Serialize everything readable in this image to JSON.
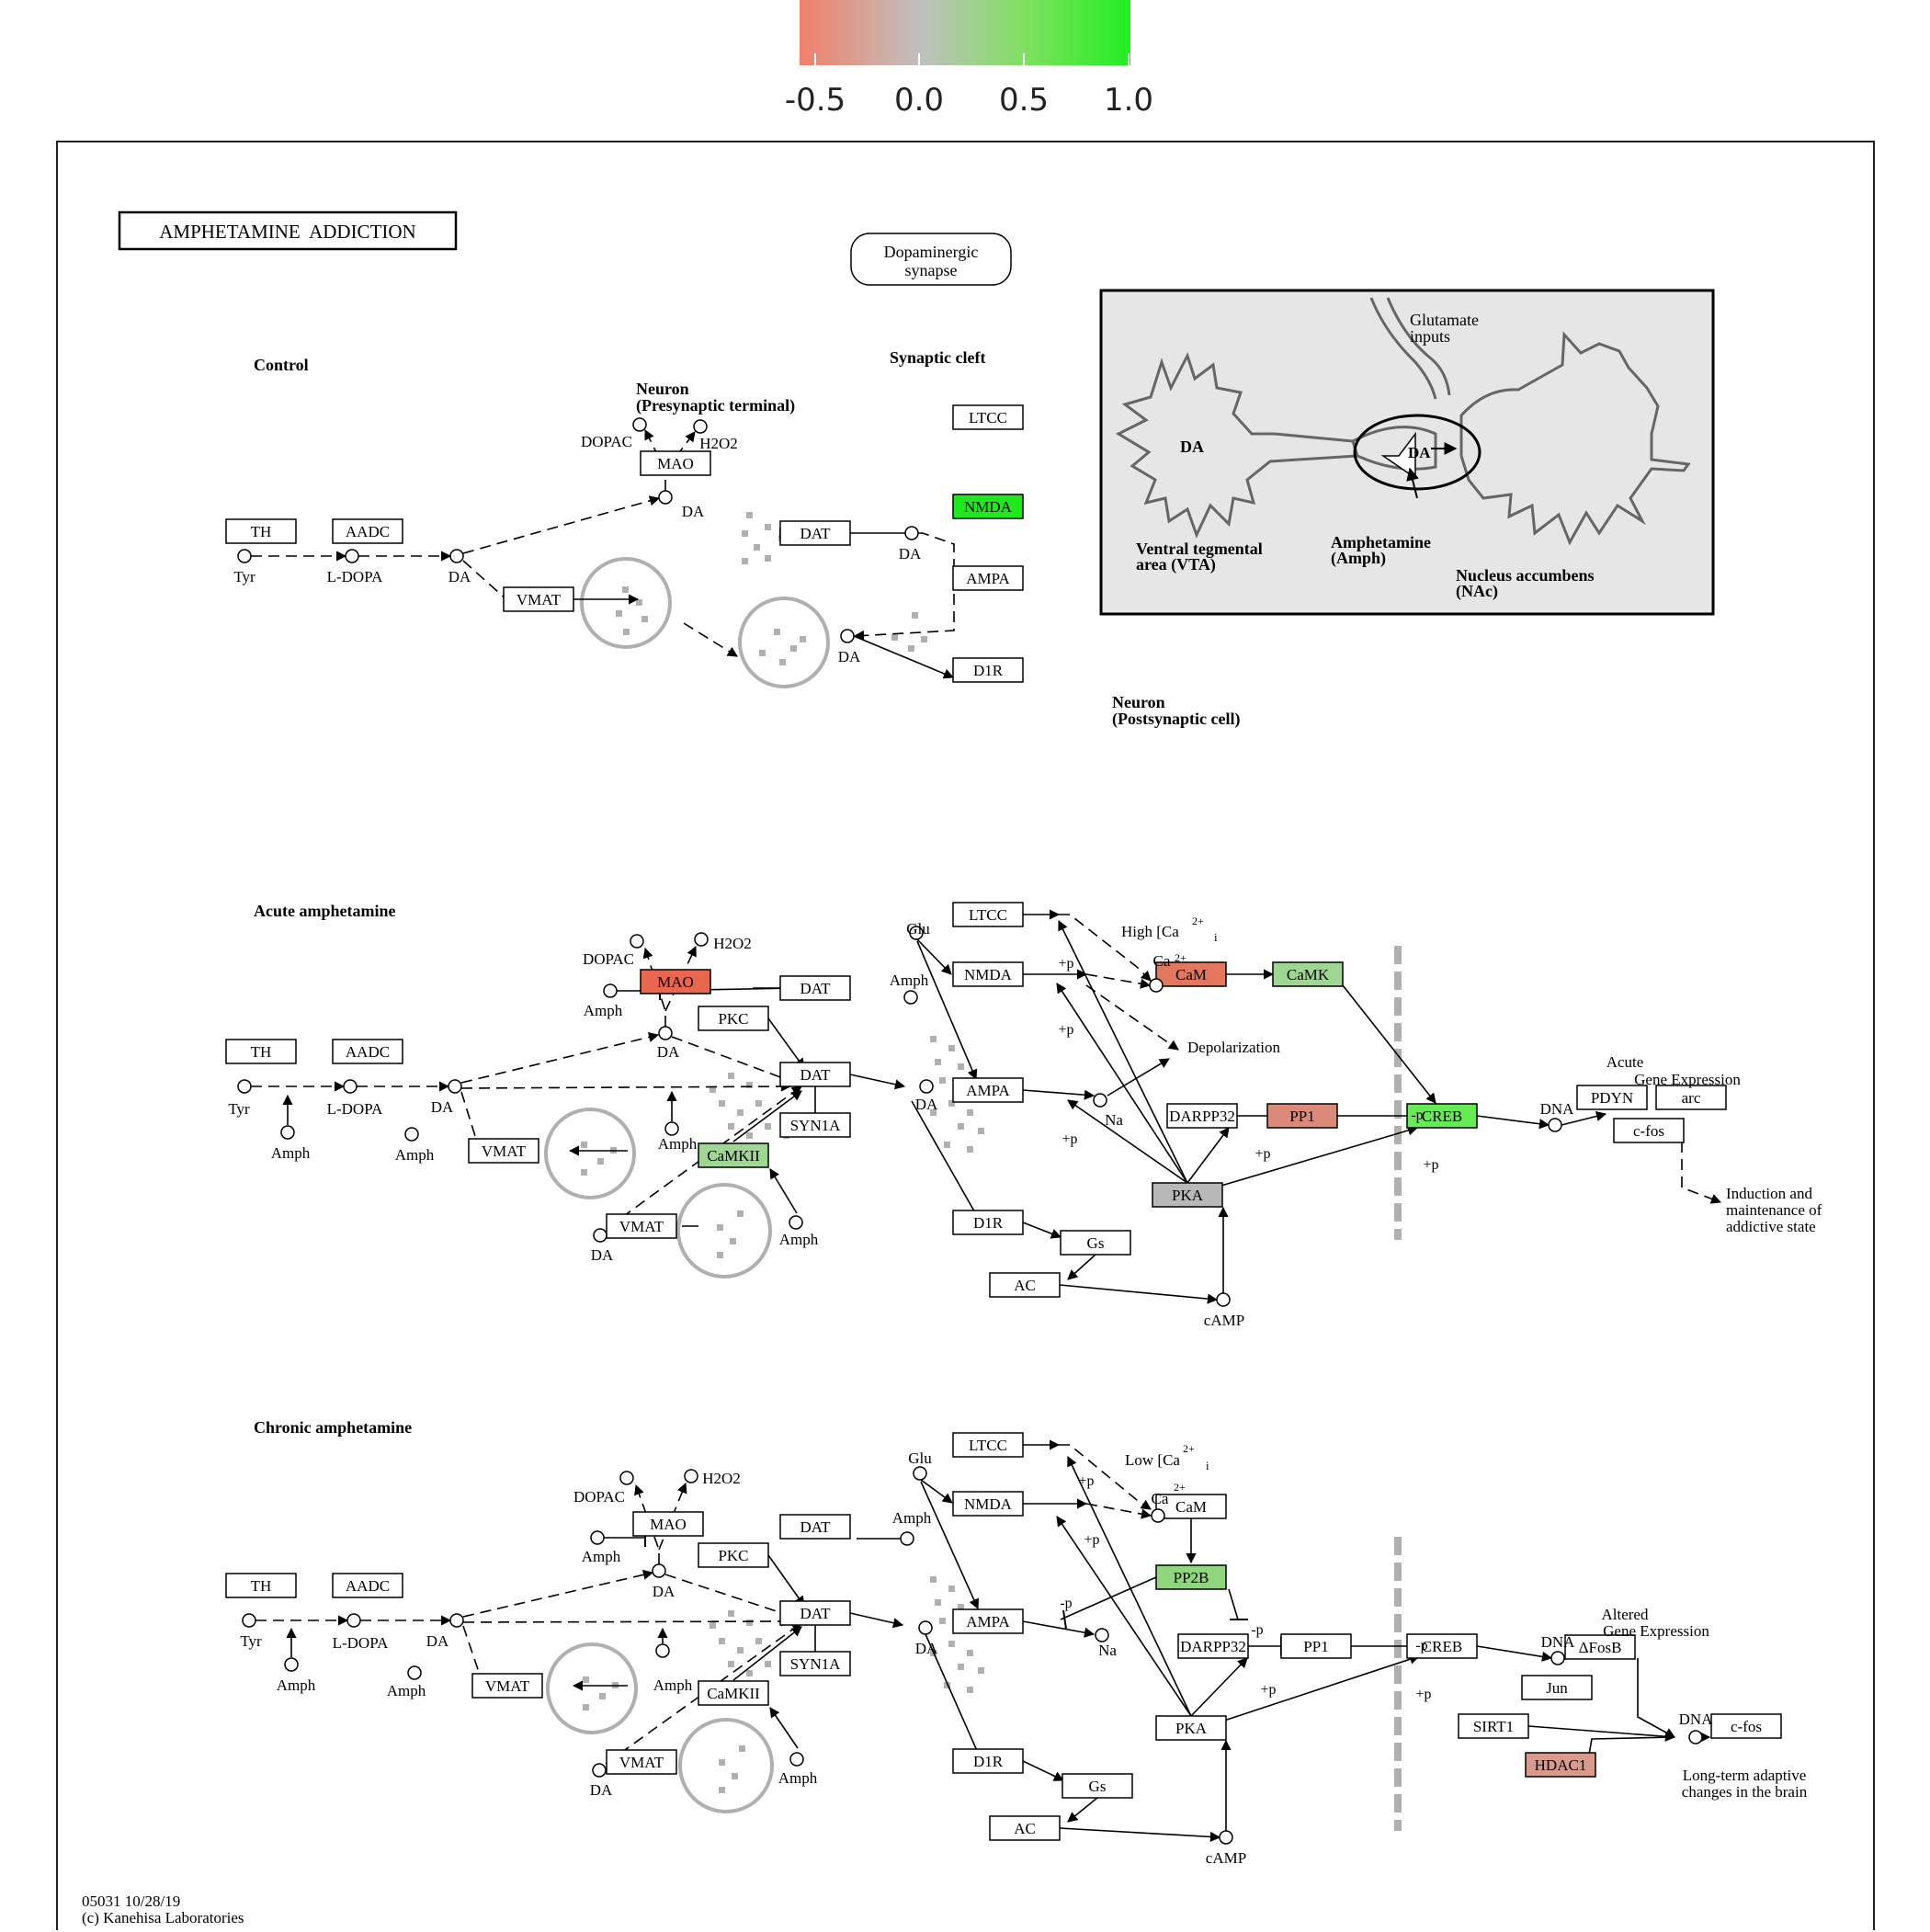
{
  "legend": {
    "colors": [
      "#f0806a",
      "#c0c0c0",
      "#7fe05f",
      "#22ee22"
    ],
    "ticks": [
      "-0.5",
      "0.0",
      "0.5",
      "1.0"
    ]
  },
  "header": {
    "title": "AMPHETAMINE  ADDICTION",
    "synapse_btn": [
      "Dopaminergic",
      "synapse"
    ]
  },
  "sections": {
    "control": "Control",
    "acute": "Acute amphetamine",
    "chronic": "Chronic amphetamine",
    "synaptic_cleft": "Synaptic cleft",
    "presynaptic": [
      "Neuron",
      "(Presynaptic terminal)"
    ],
    "postsynaptic": [
      "Neuron",
      "(Postsynaptic cell)"
    ]
  },
  "inset": {
    "glutamate": [
      "Glutamate",
      "inputs"
    ],
    "da_left": "DA",
    "da_synapse": "DA",
    "vta": [
      "Ventral tegmental",
      "area (VTA)"
    ],
    "amph": [
      "Amphetamine",
      "(Amph)"
    ],
    "nac": [
      "Nucleus accumbens",
      "(NAc)"
    ]
  },
  "colors": {
    "nmda_green": "#1fe81f",
    "mao_red": "#e8674e",
    "cam_red": "#e2775d",
    "pp1_pink": "#db8a7a",
    "hdac1_pink": "#d99a8c",
    "camk_green": "#9fd693",
    "camkii_green": "#9fd693",
    "pp2b_green": "#8fd67f",
    "creb_green": "#66ea55",
    "pka_gray": "#b8b8b8",
    "vesicle_gray": "#b0b0b0"
  },
  "nodes": {
    "c_th": "TH",
    "c_aadc": "AADC",
    "c_mao": "MAO",
    "c_vmat": "VMAT",
    "c_dat": "DAT",
    "c_ltcc": "LTCC",
    "c_nmda": "NMDA",
    "c_ampa": "AMPA",
    "c_d1r": "D1R",
    "a_th": "TH",
    "a_aadc": "AADC",
    "a_mao": "MAO",
    "a_pkc": "PKC",
    "a_dat1": "DAT",
    "a_dat2": "DAT",
    "a_syn1a": "SYN1A",
    "a_camkii": "CaMKII",
    "a_vmat1": "VMAT",
    "a_vmat2": "VMAT",
    "a_ltcc": "LTCC",
    "a_nmda": "NMDA",
    "a_ampa": "AMPA",
    "a_d1r": "D1R",
    "a_gs": "Gs",
    "a_ac": "AC",
    "a_cam": "CaM",
    "a_camk": "CaMK",
    "a_darpp32": "DARPP32",
    "a_pp1": "PP1",
    "a_pka": "PKA",
    "a_creb": "CREB",
    "a_pdyn": "PDYN",
    "a_arc": "arc",
    "a_cfos": "c-fos",
    "h_th": "TH",
    "h_aadc": "AADC",
    "h_mao": "MAO",
    "h_pkc": "PKC",
    "h_dat1": "DAT",
    "h_dat2": "DAT",
    "h_syn1a": "SYN1A",
    "h_camkii": "CaMKII",
    "h_vmat1": "VMAT",
    "h_vmat2": "VMAT",
    "h_ltcc": "LTCC",
    "h_nmda": "NMDA",
    "h_ampa": "AMPA",
    "h_d1r": "D1R",
    "h_gs": "Gs",
    "h_ac": "AC",
    "h_cam": "CaM",
    "h_pp2b": "PP2B",
    "h_darpp32": "DARPP32",
    "h_pp1": "PP1",
    "h_pka": "PKA",
    "h_creb": "CREB",
    "h_fosb": "ΔFosB",
    "h_jun": "Jun",
    "h_sirt1": "SIRT1",
    "h_hdac1": "HDAC1",
    "h_cfos": "c-fos"
  },
  "labels": {
    "tyr": "Tyr",
    "ldopa": "L-DOPA",
    "da": "DA",
    "dopac": "DOPAC",
    "h2o2": "H2O2",
    "amph": "Amph",
    "glu": "Glu",
    "na": "Na",
    "ca": "Ca",
    "plus": "+",
    "two_plus": "2+",
    "high_ca": "High [Ca",
    "low_ca": "Low [Ca",
    "sub_i": "i",
    "depol": "Depolarization",
    "camp": "cAMP",
    "dna": "DNA",
    "plus_p": "+p",
    "minus_p": "-p",
    "acute_expr": [
      "Acute",
      "Gene Expression"
    ],
    "altered_expr": [
      "Altered",
      "Gene Expression"
    ],
    "induction": [
      "Induction and",
      "maintenance of",
      "addictive state"
    ],
    "longterm": [
      "Long-term adaptive",
      "changes in the brain"
    ]
  },
  "footer": [
    "05031 10/28/19",
    "(c) Kanehisa Laboratories"
  ]
}
